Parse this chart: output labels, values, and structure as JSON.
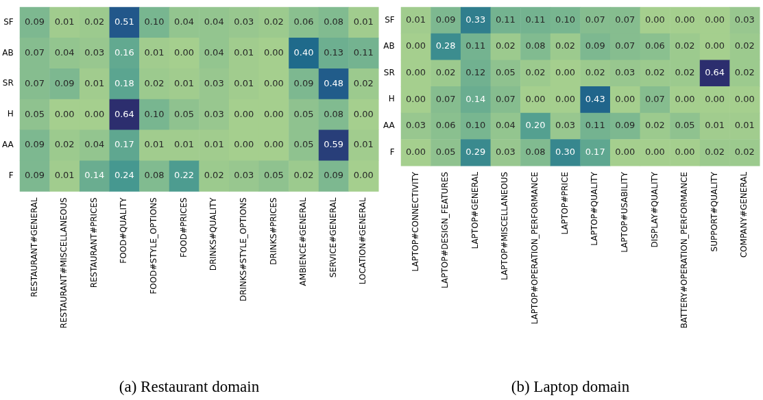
{
  "chart_data": [
    {
      "type": "heatmap",
      "title": "(a) Restaurant domain",
      "categories": [
        "RESTAURANT#GENERAL",
        "RESTAURANT#MISCELLANEOUS",
        "RESTAURANT#PRICES",
        "FOOD#QUALITY",
        "FOOD#STYLE_OPTIONS",
        "FOOD#PRICES",
        "DRINKS#QUALITY",
        "DRINKS#STYLE_OPTIONS",
        "DRINKS#PRICES",
        "AMBIENCE#GENERAL",
        "SERVICE#GENERAL",
        "LOCATION#GENERAL"
      ],
      "y_categories": [
        "SF",
        "AB",
        "SR",
        "H",
        "AA",
        "F"
      ],
      "cells": [
        [
          0.09,
          0.01,
          0.02,
          0.51,
          0.1,
          0.04,
          0.04,
          0.03,
          0.02,
          0.06,
          0.08,
          0.01
        ],
        [
          0.07,
          0.04,
          0.03,
          0.16,
          0.01,
          0.0,
          0.04,
          0.01,
          0.0,
          0.4,
          0.13,
          0.11
        ],
        [
          0.07,
          0.09,
          0.01,
          0.18,
          0.02,
          0.01,
          0.03,
          0.01,
          0.0,
          0.09,
          0.48,
          0.02
        ],
        [
          0.05,
          0.0,
          0.0,
          0.64,
          0.1,
          0.05,
          0.03,
          0.0,
          0.0,
          0.05,
          0.08,
          0.0
        ],
        [
          0.09,
          0.02,
          0.04,
          0.17,
          0.01,
          0.01,
          0.01,
          0.0,
          0.0,
          0.05,
          0.59,
          0.01
        ],
        [
          0.09,
          0.01,
          0.14,
          0.24,
          0.08,
          0.22,
          0.02,
          0.03,
          0.05,
          0.02,
          0.09,
          0.0
        ]
      ],
      "cell_labels": [
        [
          "0.09",
          "0.01",
          "0.02",
          "0.51",
          "0.10",
          "0.04",
          "0.04",
          "0.03",
          "0.02",
          "0.06",
          "0.08",
          "0.01"
        ],
        [
          "0.07",
          "0.04",
          "0.03",
          "0.16",
          "0.01",
          "0.00",
          "0.04",
          "0.01",
          "0.00",
          "0.40",
          "0.13",
          "0.11"
        ],
        [
          "0.07",
          "0.09",
          "0.01",
          "0.18",
          "0.02",
          "0.01",
          "0.03",
          "0.01",
          "0.00",
          "0.09",
          "0.48",
          "0.02"
        ],
        [
          "0.05",
          "0.00",
          "0.00",
          "0.64",
          "0.10",
          "0.05",
          "0.03",
          "0.00",
          "0.00",
          "0.05",
          "0.08",
          "0.00"
        ],
        [
          "0.09",
          "0.02",
          "0.04",
          "0.17",
          "0.01",
          "0.01",
          "0.01",
          "0.00",
          "0.00",
          "0.05",
          "0.59",
          "0.01"
        ],
        [
          "0.09",
          "0.01",
          "0.14",
          "0.24",
          "0.08",
          "0.22",
          "0.02",
          "0.03",
          "0.05",
          "0.02",
          "0.09",
          "0.00"
        ]
      ]
    },
    {
      "type": "heatmap",
      "title": "(b) Laptop domain",
      "categories": [
        "LAPTOP#CONNECTIVITY",
        "LAPTOP#DESIGN_FEATURES",
        "LAPTOP#GENERAL",
        "LAPTOP#MISCELLANEOUS",
        "LAPTOP#OPERATION_PERFORMANCE",
        "LAPTOP#PRICE",
        "LAPTOP#QUALITY",
        "LAPTOP#USABILITY",
        "DISPLAY#QUALITY",
        "BATTERY#OPERATION_PERFORMANCE",
        "SUPPORT#QUALITY",
        "COMPANY#GENERAL"
      ],
      "y_categories": [
        "SF",
        "AB",
        "SR",
        "H",
        "AA",
        "F"
      ],
      "cells": [
        [
          0.01,
          0.09,
          0.33,
          0.11,
          0.11,
          0.1,
          0.07,
          0.07,
          0.0,
          0.0,
          0.0,
          0.03
        ],
        [
          0.0,
          0.28,
          0.11,
          0.02,
          0.08,
          0.02,
          0.09,
          0.07,
          0.06,
          0.02,
          0.0,
          0.02
        ],
        [
          0.0,
          0.02,
          0.12,
          0.05,
          0.02,
          0.0,
          0.02,
          0.03,
          0.02,
          0.02,
          0.64,
          0.02
        ],
        [
          0.0,
          0.07,
          0.14,
          0.07,
          0.0,
          0.0,
          0.43,
          0.0,
          0.07,
          0.0,
          0.0,
          0.0
        ],
        [
          0.03,
          0.06,
          0.1,
          0.04,
          0.2,
          0.03,
          0.11,
          0.09,
          0.02,
          0.05,
          0.01,
          0.01
        ],
        [
          0.0,
          0.05,
          0.29,
          0.03,
          0.08,
          0.3,
          0.17,
          0.0,
          0.0,
          0.0,
          0.02,
          0.02
        ]
      ],
      "cell_labels": [
        [
          "0.01",
          "0.09",
          "0.33",
          "0.11",
          "0.11",
          "0.10",
          "0.07",
          "0.07",
          "0.00",
          "0.00",
          "0.00",
          "0.03"
        ],
        [
          "0.00",
          "0.28",
          "0.11",
          "0.02",
          "0.08",
          "0.02",
          "0.09",
          "0.07",
          "0.06",
          "0.02",
          "0.00",
          "0.02"
        ],
        [
          "0.00",
          "0.02",
          "0.12",
          "0.05",
          "0.02",
          "0.00",
          "0.02",
          "0.03",
          "0.02",
          "0.02",
          "0.64",
          "0.02"
        ],
        [
          "0.00",
          "0.07",
          "0.14",
          "0.07",
          "0.00",
          "0.00",
          "0.43",
          "0.00",
          "0.07",
          "0.00",
          "0.00",
          "0.00"
        ],
        [
          "0.03",
          "0.06",
          "0.10",
          "0.04",
          "0.20",
          "0.03",
          "0.11",
          "0.09",
          "0.02",
          "0.05",
          "0.01",
          "0.01"
        ],
        [
          "0.00",
          "0.05",
          "0.29",
          "0.03",
          "0.08",
          "0.30",
          "0.17",
          "0.00",
          "0.00",
          "0.00",
          "0.02",
          "0.02"
        ]
      ]
    }
  ]
}
